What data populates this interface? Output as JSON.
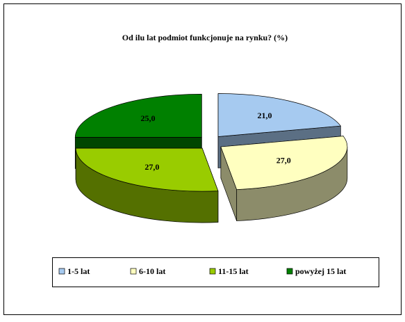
{
  "chart_data": {
    "type": "pie3d",
    "title": "Od ilu lat podmiot funkcjonuje na rynku? (%)",
    "categories": [
      "1-5 lat",
      "6-10 lat",
      "11-15 lat",
      "powyżej 15 lat"
    ],
    "values": [
      21.0,
      27.0,
      27.0,
      25.0
    ],
    "value_labels": [
      "21,0",
      "27,0",
      "27,0",
      "25,0"
    ],
    "colors": [
      "#a6caf0",
      "#ffffc0",
      "#99cc00",
      "#008000"
    ],
    "legend": "bottom"
  }
}
